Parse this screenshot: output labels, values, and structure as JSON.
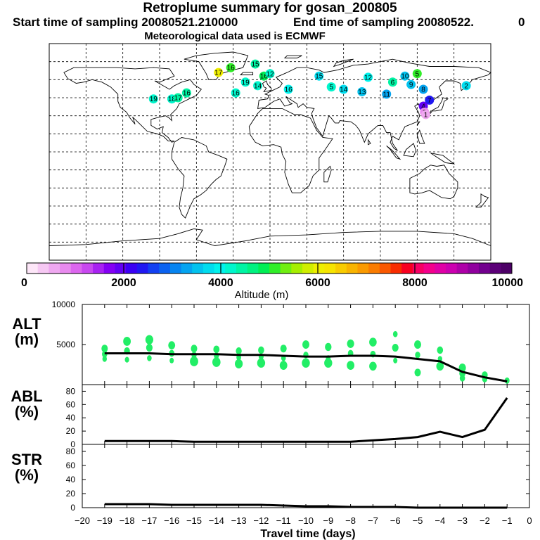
{
  "header": {
    "title": "Retroplume summary for gosan_200805",
    "start": "Start time of sampling 20080521.210000",
    "end": "End time of sampling 20080522.",
    "end_suffix": "0",
    "met": "Meteorological data used is ECMWF"
  },
  "colorbar": {
    "colors": [
      "#fde6f8",
      "#f6c8f3",
      "#efa8f0",
      "#e88aee",
      "#dc66ee",
      "#c848f0",
      "#a822f2",
      "#8400f4",
      "#6200f4",
      "#3a00f4",
      "#2018f2",
      "#1240f2",
      "#0a62f0",
      "#0684f0",
      "#04a4f0",
      "#02c2ee",
      "#00dcee",
      "#00f2ec",
      "#00f6cc",
      "#00f4a4",
      "#00f280",
      "#00ee54",
      "#30ee28",
      "#70ee10",
      "#a6ee00",
      "#d0ee00",
      "#eeee00",
      "#f6e400",
      "#f8cc00",
      "#f8b400",
      "#fa9a00",
      "#fa7c00",
      "#fa5800",
      "#f82c00",
      "#f80020",
      "#f80064",
      "#f4008c",
      "#e000a6",
      "#cc00b0",
      "#ae00a8",
      "#90009e",
      "#72008e",
      "#5c0078",
      "#4c0066"
    ],
    "ticks": [
      "0",
      "2000",
      "4000",
      "6000",
      "8000",
      "10000"
    ],
    "label": "Altitude (m)"
  },
  "map_labels": [
    {
      "text": "16",
      "alt": 5200,
      "lon": -32,
      "lat": 70
    },
    {
      "text": "17",
      "alt": 6000,
      "lon": -42,
      "lat": 66
    },
    {
      "text": "16",
      "alt": 4800,
      "lon": -5,
      "lat": 63
    },
    {
      "text": "15",
      "alt": 4400,
      "lon": -12,
      "lat": 73
    },
    {
      "text": "12",
      "alt": 4300,
      "lon": 0,
      "lat": 65
    },
    {
      "text": "19",
      "alt": 4200,
      "lon": -20,
      "lat": 58
    },
    {
      "text": "14",
      "alt": 4100,
      "lon": -10,
      "lat": 55
    },
    {
      "text": "16",
      "alt": 4500,
      "lon": -68,
      "lat": 49
    },
    {
      "text": "19",
      "alt": 4200,
      "lon": -95,
      "lat": 44
    },
    {
      "text": "18",
      "alt": 4300,
      "lon": -80,
      "lat": 44
    },
    {
      "text": "17",
      "alt": 4400,
      "lon": -75,
      "lat": 45
    },
    {
      "text": "16",
      "alt": 4300,
      "lon": -28,
      "lat": 49
    },
    {
      "text": "16",
      "alt": 4000,
      "lon": 15,
      "lat": 52
    },
    {
      "text": "15",
      "alt": 3800,
      "lon": 40,
      "lat": 63
    },
    {
      "text": "14",
      "alt": 3700,
      "lon": 60,
      "lat": 52
    },
    {
      "text": "13",
      "alt": 3600,
      "lon": 75,
      "lat": 50
    },
    {
      "text": "12",
      "alt": 3900,
      "lon": 80,
      "lat": 62
    },
    {
      "text": "11",
      "alt": 3200,
      "lon": 95,
      "lat": 48
    },
    {
      "text": "10",
      "alt": 3600,
      "lon": 110,
      "lat": 63
    },
    {
      "text": "9",
      "alt": 3500,
      "lon": 115,
      "lat": 56
    },
    {
      "text": "8",
      "alt": 3400,
      "lon": 125,
      "lat": 52
    },
    {
      "text": "7",
      "alt": 2400,
      "lon": 130,
      "lat": 43
    },
    {
      "text": "6",
      "alt": 4500,
      "lon": 100,
      "lat": 58
    },
    {
      "text": "5",
      "alt": 5000,
      "lon": 120,
      "lat": 65
    },
    {
      "text": "4",
      "alt": 2000,
      "lon": 125,
      "lat": 38
    },
    {
      "text": "2",
      "alt": 900,
      "lon": 126,
      "lat": 33
    },
    {
      "text": "1",
      "alt": 500,
      "lon": 127,
      "lat": 31
    },
    {
      "text": "2",
      "alt": 3800,
      "lon": 160,
      "lat": 55
    },
    {
      "text": "5",
      "alt": 4200,
      "lon": 50,
      "lat": 54
    }
  ],
  "chart_data": [
    {
      "type": "line",
      "name": "ALT",
      "ylabel_lines": [
        "ALT",
        "(m)"
      ],
      "ylim": [
        0,
        10000
      ],
      "yticks": [
        "5000",
        "10000"
      ],
      "x": [
        -19,
        -18,
        -17,
        -16,
        -15,
        -14,
        -13,
        -12,
        -11,
        -10,
        -9,
        -8,
        -7,
        -6,
        -5,
        -4,
        -3,
        -2,
        -1
      ],
      "median": [
        3900,
        3900,
        3900,
        3800,
        3800,
        3800,
        3700,
        3700,
        3600,
        3500,
        3500,
        3600,
        3600,
        3500,
        3200,
        2900,
        1600,
        900,
        400
      ],
      "scatter_points": [
        [
          -19,
          4500
        ],
        [
          -19,
          3800
        ],
        [
          -19,
          3200
        ],
        [
          -18,
          5400
        ],
        [
          -18,
          4200
        ],
        [
          -18,
          3100
        ],
        [
          -17,
          5600
        ],
        [
          -17,
          4600
        ],
        [
          -17,
          3300
        ],
        [
          -16,
          4900
        ],
        [
          -16,
          3900
        ],
        [
          -16,
          3000
        ],
        [
          -15,
          4500
        ],
        [
          -15,
          3700
        ],
        [
          -15,
          2900
        ],
        [
          -14,
          4400
        ],
        [
          -14,
          3600
        ],
        [
          -14,
          2800
        ],
        [
          -13,
          4200
        ],
        [
          -13,
          3400
        ],
        [
          -13,
          2600
        ],
        [
          -12,
          4300
        ],
        [
          -12,
          3500
        ],
        [
          -12,
          2700
        ],
        [
          -11,
          4500
        ],
        [
          -11,
          3300
        ],
        [
          -11,
          2400
        ],
        [
          -10,
          5000
        ],
        [
          -10,
          3700
        ],
        [
          -10,
          2700
        ],
        [
          -9,
          4700
        ],
        [
          -9,
          3300
        ],
        [
          -9,
          2700
        ],
        [
          -8,
          5100
        ],
        [
          -8,
          3900
        ],
        [
          -8,
          2400
        ],
        [
          -7,
          5300
        ],
        [
          -7,
          3800
        ],
        [
          -7,
          2300
        ],
        [
          -6,
          6300
        ],
        [
          -6,
          4600
        ],
        [
          -6,
          3000
        ],
        [
          -5,
          5000
        ],
        [
          -5,
          3700
        ],
        [
          -5,
          1500
        ],
        [
          -4,
          4300
        ],
        [
          -4,
          3200
        ],
        [
          -4,
          2300
        ],
        [
          -3,
          2100
        ],
        [
          -3,
          1400
        ],
        [
          -3,
          800
        ],
        [
          -2,
          1200
        ],
        [
          -2,
          700
        ],
        [
          -1,
          500
        ]
      ]
    },
    {
      "type": "line",
      "name": "ABL",
      "ylabel_lines": [
        "ABL",
        "(%)"
      ],
      "ylim": [
        0,
        90
      ],
      "yticks": [
        "0",
        "20",
        "40",
        "60",
        "80"
      ],
      "x": [
        -19,
        -18,
        -17,
        -16,
        -15,
        -14,
        -13,
        -12,
        -11,
        -10,
        -9,
        -8,
        -7,
        -6,
        -5,
        -4,
        -3,
        -2,
        -1
      ],
      "values": [
        5,
        5,
        5,
        5,
        4,
        4,
        4,
        4,
        4,
        4,
        4,
        4,
        6,
        8,
        11,
        19,
        11,
        22,
        70
      ]
    },
    {
      "type": "line",
      "name": "STR",
      "ylabel_lines": [
        "STR",
        "(%)"
      ],
      "ylim": [
        0,
        90
      ],
      "yticks": [
        "0",
        "20",
        "40",
        "60",
        "80"
      ],
      "x": [
        -19,
        -18,
        -17,
        -16,
        -15,
        -14,
        -13,
        -12,
        -11,
        -10,
        -9,
        -8,
        -7,
        -6,
        -5,
        -4,
        -3,
        -2,
        -1
      ],
      "values": [
        5,
        5,
        5,
        4,
        4,
        4,
        4,
        4,
        3,
        2,
        2,
        1,
        1,
        1,
        0,
        0,
        0,
        0,
        0
      ]
    }
  ],
  "xaxis": {
    "ticks": [
      "−20",
      "−19",
      "−18",
      "−17",
      "−16",
      "−15",
      "−14",
      "−13",
      "−12",
      "−11",
      "−10",
      "−9",
      "−8",
      "−7",
      "−6",
      "−5",
      "−4",
      "−3",
      "−2",
      "−1",
      "0"
    ],
    "label": "Travel time (days)"
  }
}
